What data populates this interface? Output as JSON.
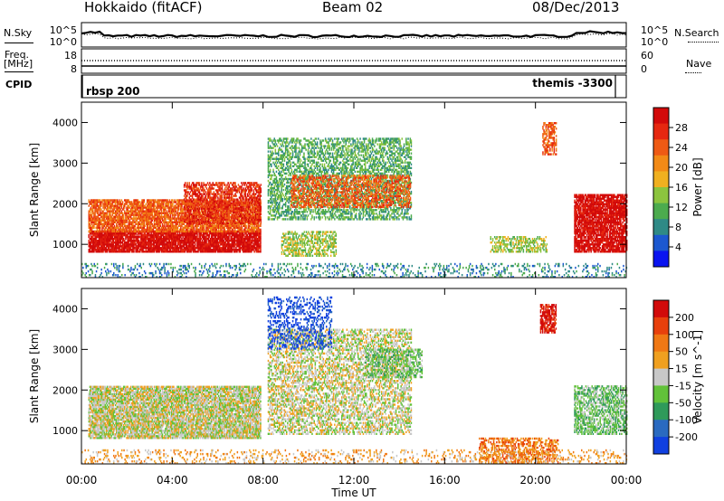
{
  "header": {
    "station": "Hokkaido (fitACF)",
    "beam": "Beam 02",
    "date": "08/Dec/2013"
  },
  "top_panels": {
    "nsky_label": "N.Sky",
    "nsky_ticks": [
      "10^5",
      "10^0"
    ],
    "nsearch_label": "N.Search",
    "nsearch_ticks": [
      "10^5",
      "10^0"
    ],
    "freq_label_1": "Freq.",
    "freq_label_2": "[MHz]",
    "freq_ticks": [
      "18",
      "8"
    ],
    "nave_label": "Nave",
    "nave_ticks": [
      "60",
      "0"
    ],
    "cpid_label": "CPID",
    "cpid_segments": [
      "rbsp 200",
      "themis -3300"
    ]
  },
  "x_axis": {
    "title": "Time UT",
    "ticks": [
      "00:00",
      "04:00",
      "08:00",
      "12:00",
      "16:00",
      "20:00",
      "00:00"
    ]
  },
  "chart_data": [
    {
      "type": "heatmap",
      "name": "power",
      "ylabel": "Slant Range [km]",
      "y_ticks": [
        1000,
        2000,
        3000,
        4000
      ],
      "ylim": [
        180,
        4500
      ],
      "xlim_hours": [
        0,
        24
      ],
      "colorbar_label": "Power [dB]",
      "colorbar_ticks": [
        "28",
        "24",
        "20",
        "16",
        "12",
        "8",
        "4"
      ],
      "colors": [
        "#0a14f0",
        "#1c58d0",
        "#2f8a86",
        "#4cab4e",
        "#8cc43e",
        "#f0b020",
        "#f28a16",
        "#ee5a14",
        "#e62810",
        "#d20a0a"
      ],
      "regions": [
        {
          "t0": 0.3,
          "t1": 7.9,
          "r0": 800,
          "r1": 1300,
          "level": 9,
          "density": 0.9
        },
        {
          "t0": 0.3,
          "t1": 7.9,
          "r0": 1300,
          "r1": 2100,
          "level": 7,
          "density": 0.8
        },
        {
          "t0": 4.5,
          "t1": 7.9,
          "r0": 1500,
          "r1": 2500,
          "level": 8,
          "density": 0.6
        },
        {
          "t0": 8.2,
          "t1": 14.5,
          "r0": 1600,
          "r1": 3600,
          "level": 3,
          "density": 0.5
        },
        {
          "t0": 9.2,
          "t1": 14.5,
          "r0": 1900,
          "r1": 2700,
          "level": 7,
          "density": 0.5
        },
        {
          "t0": 8.8,
          "t1": 11.2,
          "r0": 700,
          "r1": 1300,
          "level": 4,
          "density": 0.5
        },
        {
          "t0": 18.0,
          "t1": 20.5,
          "r0": 800,
          "r1": 1200,
          "level": 4,
          "density": 0.5
        },
        {
          "t0": 20.3,
          "t1": 20.9,
          "r0": 3200,
          "r1": 4000,
          "level": 7,
          "density": 0.6
        },
        {
          "t0": 21.7,
          "t1": 24.0,
          "r0": 800,
          "r1": 2200,
          "level": 9,
          "density": 0.85
        },
        {
          "t0": 0.0,
          "t1": 24.0,
          "r0": 180,
          "r1": 500,
          "level": 2,
          "density": 0.2
        }
      ]
    },
    {
      "type": "heatmap",
      "name": "velocity",
      "ylabel": "Slant Range [km]",
      "y_ticks": [
        1000,
        2000,
        3000,
        4000
      ],
      "ylim": [
        180,
        4500
      ],
      "xlim_hours": [
        0,
        24
      ],
      "colorbar_label": "Velocity [m s^-1]",
      "colorbar_ticks": [
        "200",
        "100",
        "50",
        "15",
        "-15",
        "-50",
        "-100",
        "-200"
      ],
      "colors": [
        "#1040e0",
        "#2a6ac0",
        "#2f9a5a",
        "#62c23a",
        "#c8c8c8",
        "#f0a020",
        "#f07814",
        "#e8400c",
        "#d20a0a"
      ],
      "regions": [
        {
          "t0": 0.3,
          "t1": 7.9,
          "r0": 800,
          "r1": 2100,
          "level": 4,
          "density": 0.85
        },
        {
          "t0": 8.2,
          "t1": 14.5,
          "r0": 900,
          "r1": 3500,
          "level": 4,
          "density": 0.5
        },
        {
          "t0": 8.2,
          "t1": 11.0,
          "r0": 3000,
          "r1": 4300,
          "level": 0,
          "density": 0.3
        },
        {
          "t0": 12.5,
          "t1": 15.0,
          "r0": 2300,
          "r1": 3000,
          "level": 3,
          "density": 0.5
        },
        {
          "t0": 17.5,
          "t1": 21.0,
          "r0": 200,
          "r1": 800,
          "level": 6,
          "density": 0.5
        },
        {
          "t0": 20.2,
          "t1": 20.9,
          "r0": 3400,
          "r1": 4100,
          "level": 8,
          "density": 0.7
        },
        {
          "t0": 21.7,
          "t1": 24.0,
          "r0": 900,
          "r1": 2100,
          "level": 3,
          "density": 0.6
        },
        {
          "t0": 0.0,
          "t1": 24.0,
          "r0": 180,
          "r1": 500,
          "level": 5,
          "density": 0.2
        }
      ]
    }
  ]
}
